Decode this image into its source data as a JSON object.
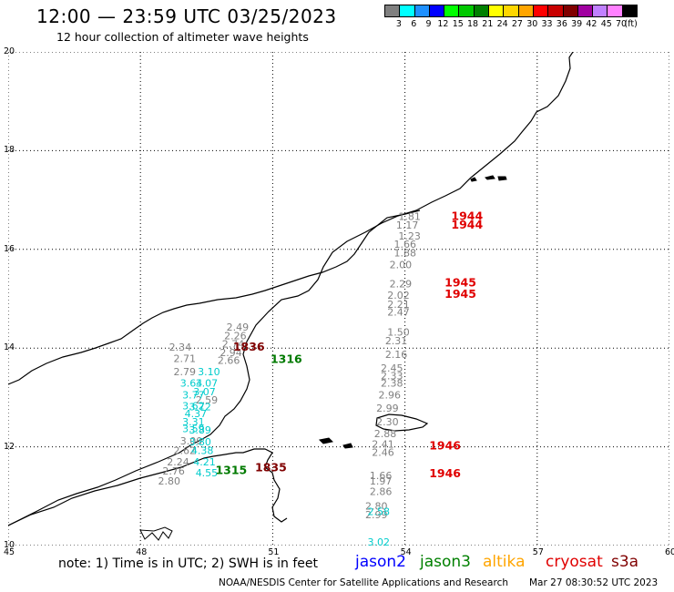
{
  "header": {
    "title": "12:00 — 23:59 UTC 03/25/2023",
    "subtitle": "12 hour collection of altimeter wave heights"
  },
  "legend": {
    "colors": [
      "#808080",
      "#00ffff",
      "#1e90ff",
      "#0000ff",
      "#00ff00",
      "#00c800",
      "#008000",
      "#ffff00",
      "#ffd700",
      "#ffa500",
      "#ff0000",
      "#c80000",
      "#800000",
      "#a000a0",
      "#c080ff",
      "#ff80ff",
      "#000000"
    ],
    "labels": [
      "3",
      "6",
      "9",
      "12",
      "15",
      "18",
      "21",
      "24",
      "27",
      "30",
      "33",
      "36",
      "39",
      "42",
      "45",
      "70",
      "(ft)"
    ]
  },
  "axes": {
    "x_ticks": [
      "45",
      "48",
      "51",
      "54",
      "57",
      "60"
    ],
    "y_ticks": [
      "20",
      "18",
      "16",
      "14",
      "12",
      "10"
    ],
    "xlim": [
      45,
      60
    ],
    "ylim": [
      10,
      20
    ]
  },
  "colors": {
    "gray": "#808080",
    "cyan": "#00cccc",
    "green": "#007a00",
    "red": "#e00000",
    "darkred": "#800000"
  },
  "time_labels": [
    {
      "text": "1944",
      "lon": 55.05,
      "lat": 16.6,
      "color": "red"
    },
    {
      "text": "1944",
      "lon": 55.05,
      "lat": 16.42,
      "color": "red"
    },
    {
      "text": "1945",
      "lon": 54.9,
      "lat": 15.25,
      "color": "red"
    },
    {
      "text": "1945",
      "lon": 54.9,
      "lat": 15.02,
      "color": "red"
    },
    {
      "text": "1946",
      "lon": 54.55,
      "lat": 11.95,
      "color": "red"
    },
    {
      "text": "1946",
      "lon": 54.55,
      "lat": 11.38,
      "color": "red"
    },
    {
      "text": "1836",
      "lon": 50.1,
      "lat": 13.95,
      "color": "darkred"
    },
    {
      "text": "1835",
      "lon": 50.6,
      "lat": 11.5,
      "color": "darkred"
    },
    {
      "text": "1316",
      "lon": 50.95,
      "lat": 13.7,
      "color": "green"
    },
    {
      "text": "1315",
      "lon": 49.7,
      "lat": 11.45,
      "color": "green"
    }
  ],
  "wave_heights": [
    {
      "text": "1.81",
      "lon": 53.85,
      "lat": 16.6,
      "color": "gray"
    },
    {
      "text": "1.17",
      "lon": 53.8,
      "lat": 16.42,
      "color": "gray"
    },
    {
      "text": "1.23",
      "lon": 53.85,
      "lat": 16.2,
      "color": "gray"
    },
    {
      "text": "1.66",
      "lon": 53.75,
      "lat": 16.03,
      "color": "gray"
    },
    {
      "text": "1.88",
      "lon": 53.75,
      "lat": 15.86,
      "color": "gray"
    },
    {
      "text": "2.00",
      "lon": 53.65,
      "lat": 15.62,
      "color": "gray"
    },
    {
      "text": "2.29",
      "lon": 53.65,
      "lat": 15.23,
      "color": "gray"
    },
    {
      "text": "2.02",
      "lon": 53.6,
      "lat": 15.0,
      "color": "gray"
    },
    {
      "text": "2.21",
      "lon": 53.6,
      "lat": 14.82,
      "color": "gray"
    },
    {
      "text": "2.47",
      "lon": 53.6,
      "lat": 14.66,
      "color": "gray"
    },
    {
      "text": "1.50",
      "lon": 53.6,
      "lat": 14.25,
      "color": "gray"
    },
    {
      "text": "2.31",
      "lon": 53.55,
      "lat": 14.08,
      "color": "gray"
    },
    {
      "text": "2.16",
      "lon": 53.55,
      "lat": 13.8,
      "color": "gray"
    },
    {
      "text": "2.45",
      "lon": 53.45,
      "lat": 13.52,
      "color": "gray"
    },
    {
      "text": "2.33",
      "lon": 53.45,
      "lat": 13.37,
      "color": "gray"
    },
    {
      "text": "2.38",
      "lon": 53.45,
      "lat": 13.22,
      "color": "gray"
    },
    {
      "text": "2.96",
      "lon": 53.4,
      "lat": 12.98,
      "color": "gray"
    },
    {
      "text": "2.99",
      "lon": 53.35,
      "lat": 12.71,
      "color": "gray"
    },
    {
      "text": "2.30",
      "lon": 53.35,
      "lat": 12.44,
      "color": "gray"
    },
    {
      "text": "2.88",
      "lon": 53.3,
      "lat": 12.2,
      "color": "gray"
    },
    {
      "text": "2.41",
      "lon": 53.25,
      "lat": 11.98,
      "color": "gray"
    },
    {
      "text": "2.46",
      "lon": 53.25,
      "lat": 11.82,
      "color": "gray"
    },
    {
      "text": "1.66",
      "lon": 53.2,
      "lat": 11.35,
      "color": "gray"
    },
    {
      "text": "1.97",
      "lon": 53.2,
      "lat": 11.24,
      "color": "gray"
    },
    {
      "text": "2.86",
      "lon": 53.2,
      "lat": 11.02,
      "color": "gray"
    },
    {
      "text": "2.80",
      "lon": 53.1,
      "lat": 10.73,
      "color": "gray"
    },
    {
      "text": "2.99",
      "lon": 53.1,
      "lat": 10.55,
      "color": "gray"
    },
    {
      "text": "2.49",
      "lon": 49.95,
      "lat": 14.35,
      "color": "gray"
    },
    {
      "text": "2.26",
      "lon": 49.9,
      "lat": 14.18,
      "color": "gray"
    },
    {
      "text": "2.74",
      "lon": 49.85,
      "lat": 14.01,
      "color": "gray"
    },
    {
      "text": "2.94",
      "lon": 49.8,
      "lat": 13.84,
      "color": "gray"
    },
    {
      "text": "2.34",
      "lon": 48.65,
      "lat": 13.95,
      "color": "gray"
    },
    {
      "text": "2.71",
      "lon": 48.75,
      "lat": 13.72,
      "color": "gray"
    },
    {
      "text": "2.66",
      "lon": 49.75,
      "lat": 13.68,
      "color": "gray"
    },
    {
      "text": "2.79",
      "lon": 48.75,
      "lat": 13.45,
      "color": "gray"
    },
    {
      "text": "2.59",
      "lon": 49.25,
      "lat": 12.88,
      "color": "gray"
    },
    {
      "text": "3.00",
      "lon": 48.9,
      "lat": 12.05,
      "color": "gray"
    },
    {
      "text": "2.62",
      "lon": 48.75,
      "lat": 11.85,
      "color": "gray"
    },
    {
      "text": "2.24",
      "lon": 48.6,
      "lat": 11.62,
      "color": "gray"
    },
    {
      "text": "2.76",
      "lon": 48.5,
      "lat": 11.44,
      "color": "gray"
    },
    {
      "text": "2.80",
      "lon": 48.4,
      "lat": 11.24,
      "color": "gray"
    },
    {
      "text": "3.10",
      "lon": 49.3,
      "lat": 13.45,
      "color": "cyan"
    },
    {
      "text": "3.64",
      "lon": 48.9,
      "lat": 13.22,
      "color": "cyan"
    },
    {
      "text": "3.07",
      "lon": 49.25,
      "lat": 13.22,
      "color": "cyan"
    },
    {
      "text": "3.77",
      "lon": 48.95,
      "lat": 12.98,
      "color": "cyan"
    },
    {
      "text": "3.07",
      "lon": 49.2,
      "lat": 13.04,
      "color": "cyan"
    },
    {
      "text": "3.62",
      "lon": 48.95,
      "lat": 12.76,
      "color": "cyan"
    },
    {
      "text": "3.72",
      "lon": 49.1,
      "lat": 12.74,
      "color": "cyan"
    },
    {
      "text": "4.37",
      "lon": 49.0,
      "lat": 12.6,
      "color": "cyan"
    },
    {
      "text": "3.31",
      "lon": 48.95,
      "lat": 12.44,
      "color": "cyan"
    },
    {
      "text": "3.59",
      "lon": 48.95,
      "lat": 12.3,
      "color": "cyan"
    },
    {
      "text": "3.89",
      "lon": 49.1,
      "lat": 12.27,
      "color": "cyan"
    },
    {
      "text": "3.80",
      "lon": 49.1,
      "lat": 12.03,
      "color": "cyan"
    },
    {
      "text": "4.38",
      "lon": 49.15,
      "lat": 11.85,
      "color": "cyan"
    },
    {
      "text": "4.21",
      "lon": 49.2,
      "lat": 11.62,
      "color": "cyan"
    },
    {
      "text": "4.55",
      "lon": 49.25,
      "lat": 11.4,
      "color": "cyan"
    },
    {
      "text": "2.58",
      "lon": 53.15,
      "lat": 10.62,
      "color": "cyan"
    },
    {
      "text": "3.02",
      "lon": 53.15,
      "lat": 10.0,
      "color": "cyan"
    }
  ],
  "footer": {
    "note": "note: 1) Time is in UTC; 2) SWH is in feet",
    "sats": [
      {
        "name": "jason2",
        "color": "#0000ff"
      },
      {
        "name": "jason3",
        "color": "#008000"
      },
      {
        "name": "altika",
        "color": "#ffa500"
      },
      {
        "name": "cryosat",
        "color": "#e00000"
      },
      {
        "name": "s3a",
        "color": "#800000"
      }
    ],
    "credit": "NOAA/NESDIS Center for Satellite Applications and Research",
    "timestamp": "Mar 27 08:30:52 UTC 2023"
  }
}
